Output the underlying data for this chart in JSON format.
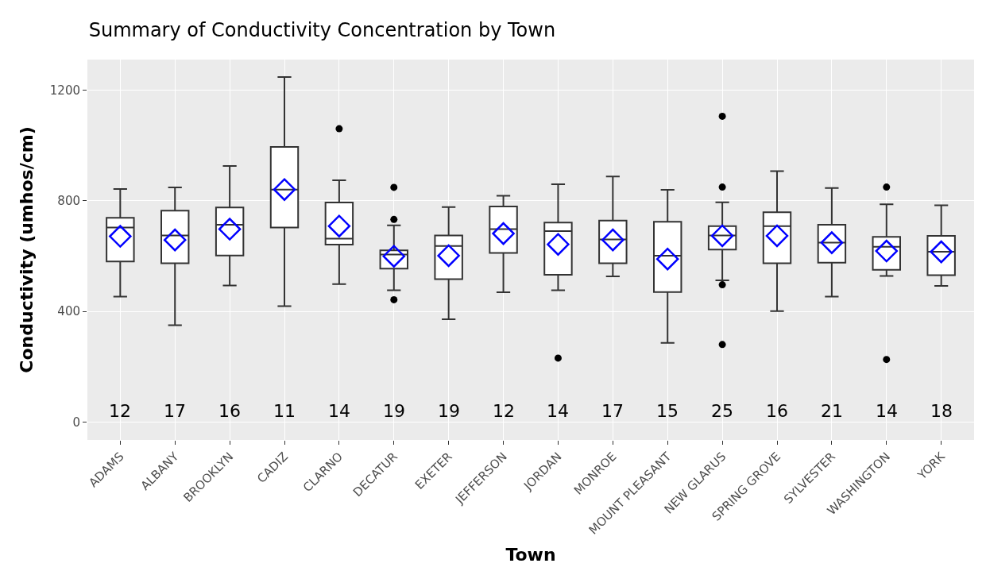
{
  "chart_data": {
    "type": "box",
    "title": "Summary of Conductivity Concentration by Town",
    "xlabel": "Town",
    "ylabel": "Conductivity (umhos/cm)",
    "categories": [
      "ADAMS",
      "ALBANY",
      "BROOKLYN",
      "CADIZ",
      "CLARNO",
      "DECATUR",
      "EXETER",
      "JEFFERSON",
      "JORDAN",
      "MONROE",
      "MOUNT PLEASANT",
      "NEW GLARUS",
      "SPRING GROVE",
      "SYLVESTER",
      "WASHINGTON",
      "YORK"
    ],
    "ylim": [
      -65,
      1310
    ],
    "yticks": [
      0,
      400,
      800,
      1200
    ],
    "grid": true,
    "marker": "diamond",
    "series": [
      {
        "color": "#333333",
        "boxes": [
          {
            "low": 453,
            "q1": 580,
            "median": 703,
            "q3": 738,
            "high": 842,
            "mean": 671
          },
          {
            "low": 350,
            "q1": 574,
            "median": 674,
            "q3": 764,
            "high": 848,
            "mean": 658
          },
          {
            "low": 493,
            "q1": 602,
            "median": 713,
            "q3": 775,
            "high": 925,
            "mean": 697
          },
          {
            "low": 419,
            "q1": 703,
            "median": 840,
            "q3": 994,
            "high": 1247,
            "mean": 840
          },
          {
            "low": 498,
            "q1": 641,
            "median": 663,
            "q3": 793,
            "high": 874,
            "mean": 708,
            "outliers": [
              1060
            ]
          },
          {
            "low": 476,
            "q1": 554,
            "median": 605,
            "q3": 620,
            "high": 711,
            "mean": 599,
            "outliers": [
              848,
              732,
              442
            ]
          },
          {
            "low": 371,
            "q1": 516,
            "median": 636,
            "q3": 674,
            "high": 777,
            "mean": 601
          },
          {
            "low": 469,
            "q1": 611,
            "median": 697,
            "q3": 779,
            "high": 818,
            "mean": 681
          },
          {
            "low": 476,
            "q1": 532,
            "median": 690,
            "q3": 721,
            "high": 859,
            "mean": 642,
            "outliers": [
              231
            ]
          },
          {
            "low": 526,
            "q1": 574,
            "median": 660,
            "q3": 728,
            "high": 887,
            "mean": 658
          },
          {
            "low": 286,
            "q1": 470,
            "median": 601,
            "q3": 724,
            "high": 839,
            "mean": 589
          },
          {
            "low": 512,
            "q1": 623,
            "median": 674,
            "q3": 708,
            "high": 794,
            "mean": 673,
            "outliers": [
              1105,
              849,
              496,
              280
            ]
          },
          {
            "low": 401,
            "q1": 574,
            "median": 708,
            "q3": 758,
            "high": 907,
            "mean": 673
          },
          {
            "low": 453,
            "q1": 576,
            "median": 648,
            "q3": 713,
            "high": 846,
            "mean": 648
          },
          {
            "low": 528,
            "q1": 550,
            "median": 633,
            "q3": 669,
            "high": 787,
            "mean": 618,
            "outliers": [
              849,
              226
            ]
          },
          {
            "low": 492,
            "q1": 531,
            "median": 615,
            "q3": 673,
            "high": 783,
            "mean": 615
          }
        ]
      }
    ],
    "annotations": [
      "12",
      "17",
      "16",
      "11",
      "14",
      "19",
      "19",
      "12",
      "14",
      "17",
      "15",
      "25",
      "16",
      "21",
      "14",
      "18"
    ]
  }
}
